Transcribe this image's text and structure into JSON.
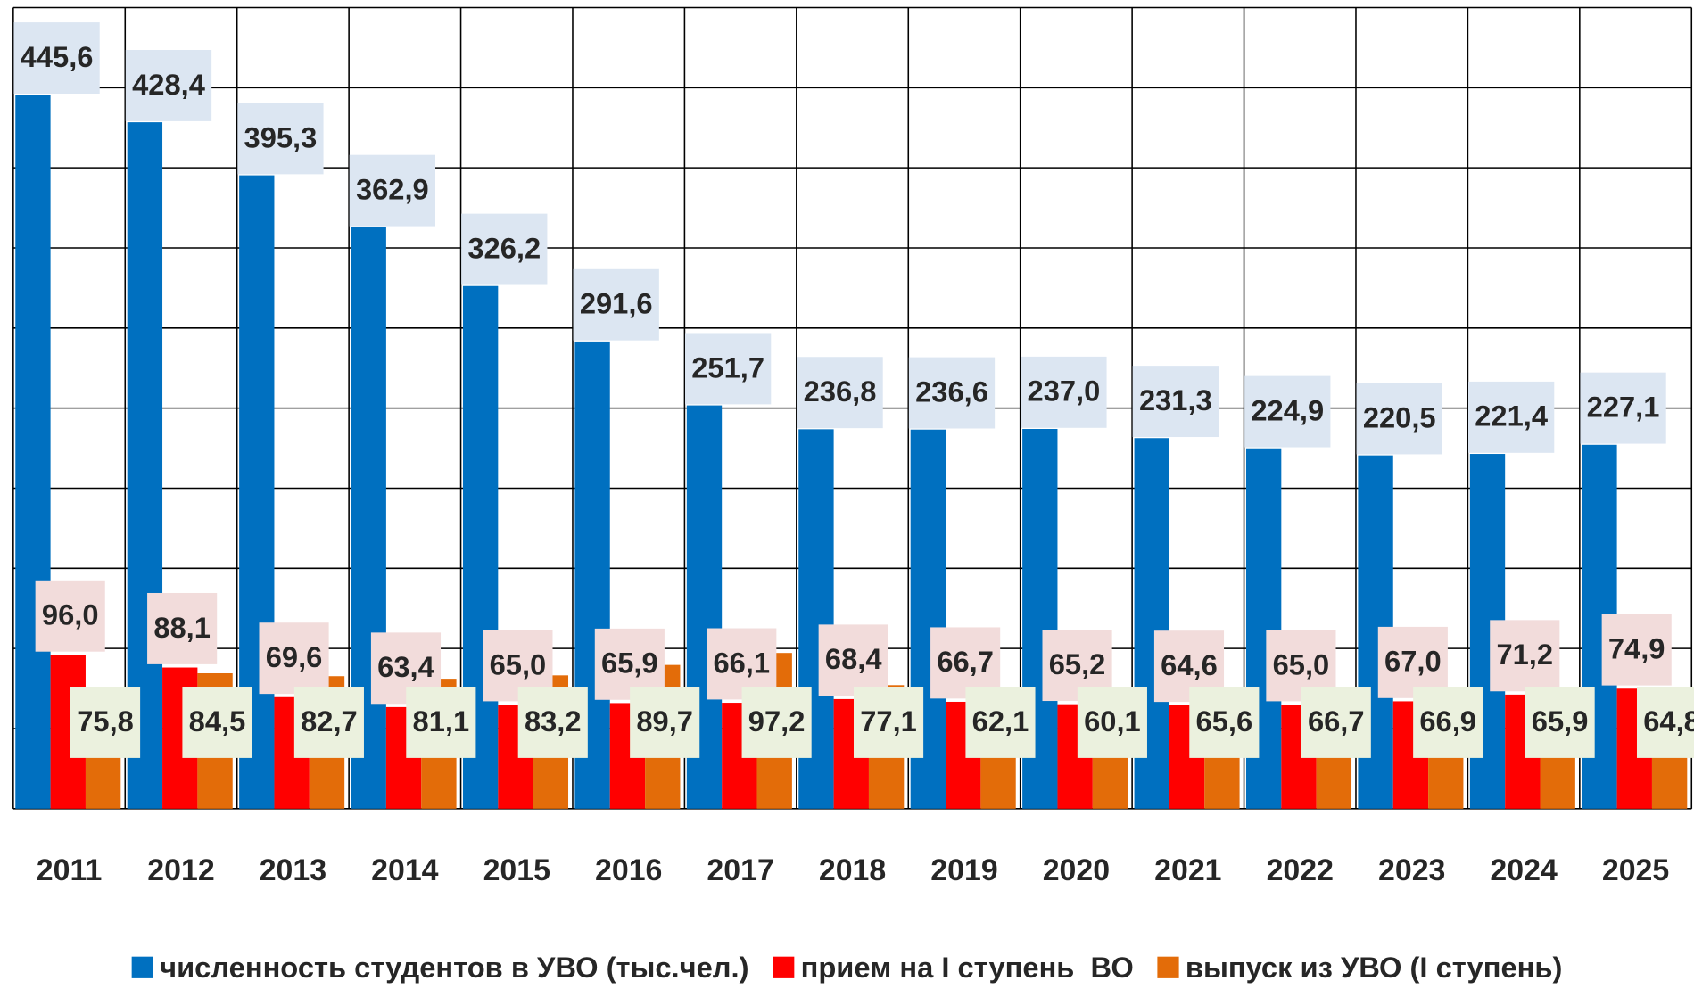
{
  "chart_data": {
    "type": "bar",
    "categories": [
      "2011",
      "2012",
      "2013",
      "2014",
      "2015",
      "2016",
      "2017",
      "2018",
      "2019",
      "2020",
      "2021",
      "2022",
      "2023",
      "2024",
      "2025"
    ],
    "series": [
      {
        "name": "численность студентов в УВО (тыс.чел.)",
        "color": "#0070c0",
        "values": [
          445.6,
          428.4,
          395.3,
          362.9,
          326.2,
          291.6,
          251.7,
          236.8,
          236.6,
          237.0,
          231.3,
          224.9,
          220.5,
          221.4,
          227.1
        ],
        "value_labels": [
          "445,6",
          "428,4",
          "395,3",
          "362,9",
          "326,2",
          "291,6",
          "251,7",
          "236,8",
          "236,6",
          "237,0",
          "231,3",
          "224,9",
          "220,5",
          "221,4",
          "227,1"
        ]
      },
      {
        "name": "прием на I ступень  ВО",
        "color": "#ff0000",
        "values": [
          96.0,
          88.1,
          69.6,
          63.4,
          65.0,
          65.9,
          66.1,
          68.4,
          66.7,
          65.2,
          64.6,
          65.0,
          67.0,
          71.2,
          74.9
        ],
        "value_labels": [
          "96,0",
          "88,1",
          "69,6",
          "63,4",
          "65,0",
          "65,9",
          "66,1",
          "68,4",
          "66,7",
          "65,2",
          "64,6",
          "65,0",
          "67,0",
          "71,2",
          "74,9"
        ]
      },
      {
        "name": "выпуск из УВО (I ступень)",
        "color": "#e36c09",
        "values": [
          75.8,
          84.5,
          82.7,
          81.1,
          83.2,
          89.7,
          97.2,
          77.1,
          62.1,
          60.1,
          65.6,
          66.7,
          66.9,
          65.9,
          64.8
        ],
        "value_labels": [
          "75,8",
          "84,5",
          "82,7",
          "81,1",
          "83,2",
          "89,7",
          "97,2",
          "77,1",
          "62,1",
          "60,1",
          "65,6",
          "66,7",
          "66,9",
          "65,9",
          "64,8"
        ]
      }
    ],
    "ylim": [
      0,
      500
    ],
    "yticks": [
      0,
      50,
      100,
      150,
      200,
      250,
      300,
      350,
      400,
      450,
      500
    ],
    "grid": true,
    "legend": "bottom"
  }
}
